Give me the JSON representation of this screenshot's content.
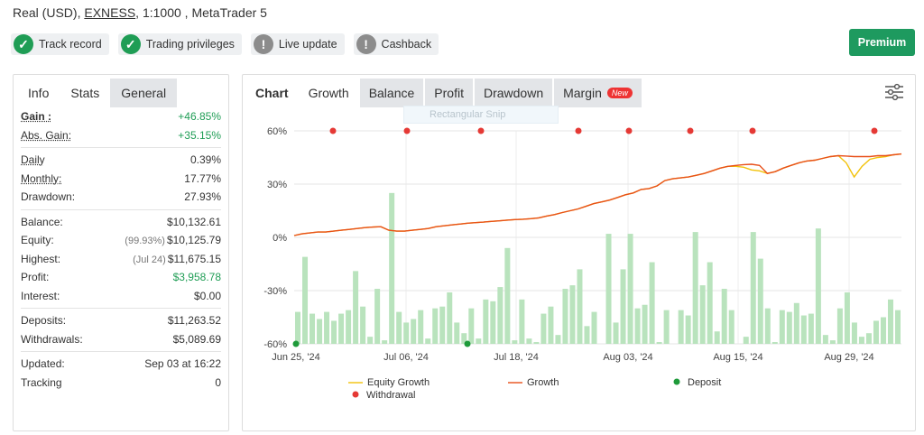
{
  "account": {
    "prefix": "Real (USD),",
    "broker": "EXNESS",
    "suffix": ", 1:1000 , MetaTrader 5"
  },
  "badges": [
    {
      "label": "Track record",
      "icon": "check-icon",
      "status": "ok"
    },
    {
      "label": "Trading privileges",
      "icon": "check-icon",
      "status": "ok"
    },
    {
      "label": "Live update",
      "icon": "exclamation-icon",
      "status": "warn"
    },
    {
      "label": "Cashback",
      "icon": "exclamation-icon",
      "status": "warn"
    }
  ],
  "premium_label": "Premium",
  "stats_tabs": [
    "Info",
    "Stats",
    "General"
  ],
  "stats": {
    "gain_label": "Gain :",
    "gain": "+46.85%",
    "abs_gain_label": "Abs. Gain:",
    "abs_gain": "+35.15%",
    "daily_label": "Daily",
    "daily": "0.39%",
    "monthly_label": "Monthly:",
    "monthly": "17.77%",
    "drawdown_label": "Drawdown:",
    "drawdown": "27.93%",
    "balance_label": "Balance:",
    "balance": "$10,132.61",
    "equity_label": "Equity:",
    "equity_pct": "(99.93%)",
    "equity": "$10,125.79",
    "highest_label": "Highest:",
    "highest_date": "(Jul 24)",
    "highest": "$11,675.15",
    "profit_label": "Profit:",
    "profit": "$3,958.78",
    "interest_label": "Interest:",
    "interest": "$0.00",
    "deposits_label": "Deposits:",
    "deposits": "$11,263.52",
    "withdrawals_label": "Withdrawals:",
    "withdrawals": "$5,089.69",
    "updated_label": "Updated:",
    "updated": "Sep 03 at 16:22",
    "tracking_label": "Tracking",
    "tracking": "0"
  },
  "chart_tabs": {
    "chart": "Chart",
    "growth": "Growth",
    "balance": "Balance",
    "profit": "Profit",
    "drawdown": "Drawdown",
    "margin": "Margin",
    "new_badge": "New"
  },
  "ghost_text": "Rectangular Snip",
  "colors": {
    "equity": "#f2c20a",
    "growth": "#e8501a",
    "withdrawal": "#e53935",
    "deposit": "#1e9a3a",
    "bar": "#b9e3bd"
  },
  "chart_data": {
    "type": "line",
    "ylim": [
      -60,
      60
    ],
    "yticks": [
      "60%",
      "30%",
      "0%",
      "-30%",
      "-60%"
    ],
    "xticks": [
      "Jun 25, '24",
      "Jul 06, '24",
      "Jul 18, '24",
      "Aug 03, '24",
      "Aug 15, '24",
      "Aug 29, '24"
    ],
    "legend": {
      "equity": "Equity Growth",
      "growth": "Growth",
      "deposit": "Deposit",
      "withdrawal": "Withdrawal"
    },
    "growth": [
      1,
      2,
      2.5,
      3,
      3,
      3.5,
      4,
      4.5,
      5,
      5.5,
      5.8,
      6,
      4,
      3.5,
      3.5,
      4,
      4.5,
      5,
      6,
      6.5,
      7,
      7.5,
      8,
      8.3,
      8.6,
      9,
      9.3,
      9.7,
      10,
      10.2,
      10.5,
      11,
      12,
      12.8,
      14,
      15,
      16,
      17.5,
      19,
      20,
      21,
      22.5,
      24,
      25,
      27,
      27.5,
      29,
      32,
      33,
      33.5,
      34,
      35,
      36,
      37.5,
      39,
      40,
      40.5,
      41,
      41.2,
      40.5,
      36,
      37,
      39,
      40.5,
      42,
      43,
      43.5,
      44.5,
      45.5,
      46,
      45.8,
      45.5,
      45.5,
      45.5,
      46,
      46,
      46.5,
      47
    ],
    "equity": [
      1,
      2,
      2.5,
      3,
      3,
      3.5,
      4,
      4.5,
      5,
      5.5,
      5.8,
      6,
      4,
      3.5,
      3.5,
      4,
      4.5,
      5,
      6,
      6.5,
      7,
      7.5,
      8,
      8.3,
      8.6,
      9,
      9.3,
      9.7,
      10,
      10.2,
      10.5,
      11,
      12,
      12.8,
      14,
      15,
      16,
      17.5,
      19,
      20,
      21,
      22.5,
      24,
      25,
      27,
      27.5,
      29,
      32,
      33,
      33.5,
      34,
      35,
      36,
      37.5,
      39,
      40,
      40,
      39.5,
      38,
      37.5,
      36,
      37,
      39,
      40.5,
      42,
      43,
      43.5,
      44.5,
      45.5,
      46,
      42,
      34,
      40,
      44,
      45,
      45.5,
      46.5,
      47
    ],
    "bars": [
      -42,
      -11,
      -43,
      -46,
      -42,
      -47,
      -43,
      -41,
      -19,
      -39,
      -56,
      -29,
      -58,
      25,
      -42,
      -48,
      -46,
      -41,
      -57,
      -40,
      -39,
      -31,
      -48,
      -54,
      -40,
      -57,
      -35,
      -36,
      -28,
      -6,
      -58,
      -35,
      -57,
      -59,
      -43,
      -39,
      -55,
      -29,
      -27,
      -18,
      -50,
      -42,
      -60,
      2,
      -48,
      -18,
      2,
      -40,
      -38,
      -14,
      -59,
      -41,
      -60,
      -41,
      -44,
      3,
      -27,
      -14,
      -53,
      -29,
      -41,
      -61,
      -56,
      3,
      -12,
      -40,
      -59,
      -41,
      -42,
      -37,
      -44,
      -43,
      5,
      -55,
      -58,
      -40,
      -31,
      -48,
      -56,
      -54,
      -47,
      -45,
      -35,
      -41
    ],
    "withdrawals_x": [
      "Jun 28",
      "Jul 06",
      "Jul 14",
      "Jul 28",
      "Aug 03",
      "Aug 10",
      "Aug 17",
      "Aug 31"
    ],
    "deposits_x": [
      "Jun 25",
      "Jul 11"
    ]
  }
}
